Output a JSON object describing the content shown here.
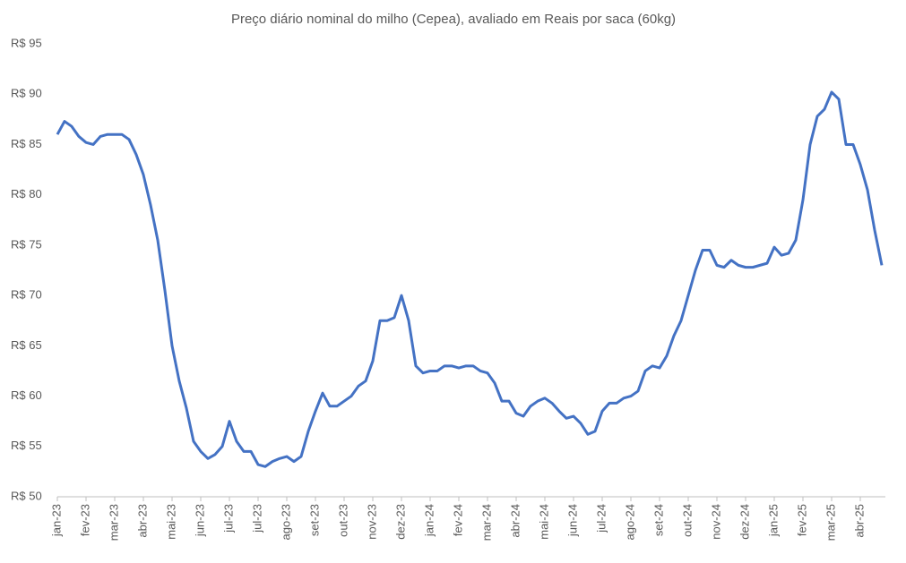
{
  "chart_data": {
    "type": "line",
    "title": "Preço diário nominal do milho (Cepea), avaliado em Reais por saca (60kg)",
    "categories": [
      "jan-23",
      null,
      null,
      null,
      "fev-23",
      null,
      null,
      null,
      "mar-23",
      null,
      null,
      null,
      "abr-23",
      null,
      null,
      null,
      "mai-23",
      null,
      null,
      null,
      "jun-23",
      null,
      null,
      null,
      "jul-23",
      null,
      null,
      null,
      "jul-23",
      null,
      null,
      null,
      "ago-23",
      null,
      null,
      null,
      "set-23",
      null,
      null,
      null,
      "out-23",
      null,
      null,
      null,
      "nov-23",
      null,
      null,
      null,
      "dez-23",
      null,
      null,
      null,
      "jan-24",
      null,
      null,
      null,
      "fev-24",
      null,
      null,
      null,
      "mar-24",
      null,
      null,
      null,
      "abr-24",
      null,
      null,
      null,
      "mai-24",
      null,
      null,
      null,
      "jun-24",
      null,
      null,
      null,
      "jul-24",
      null,
      null,
      null,
      "ago-24",
      null,
      null,
      null,
      "set-24",
      null,
      null,
      null,
      "out-24",
      null,
      null,
      null,
      "nov-24",
      null,
      null,
      null,
      "dez-24",
      null,
      null,
      null,
      "jan-25",
      null,
      null,
      null,
      "fev-25",
      null,
      null,
      null,
      "mar-25",
      null,
      null,
      null,
      "abr-25",
      null,
      null,
      null
    ],
    "values": [
      86,
      87.3,
      86.8,
      85.8,
      85.2,
      85,
      85.8,
      86,
      86,
      86,
      85.5,
      84,
      82,
      79,
      75.5,
      70.5,
      65,
      61.5,
      58.8,
      55.5,
      54.5,
      53.8,
      54.2,
      55,
      57.5,
      55.5,
      54.5,
      54.5,
      53.2,
      53,
      53.5,
      53.8,
      54,
      53.5,
      54,
      56.5,
      58.5,
      60.3,
      59,
      59,
      59.5,
      60,
      61,
      61.5,
      63.5,
      67.5,
      67.5,
      67.8,
      70,
      67.5,
      63,
      62.3,
      62.5,
      62.5,
      63,
      63,
      62.8,
      63,
      63,
      62.5,
      62.3,
      61.3,
      59.5,
      59.5,
      58.3,
      58,
      59,
      59.5,
      59.8,
      59.3,
      58.5,
      57.8,
      58,
      57.3,
      56.2,
      56.5,
      58.5,
      59.3,
      59.3,
      59.8,
      60,
      60.5,
      62.5,
      63,
      62.8,
      64,
      66,
      67.5,
      70,
      72.5,
      74.5,
      74.5,
      73,
      72.8,
      73.5,
      73,
      72.8,
      72.8,
      73,
      73.2,
      74.8,
      74,
      74.2,
      75.5,
      79.5,
      85,
      87.8,
      88.5,
      90.2,
      89.5,
      85,
      85,
      83,
      80.5,
      76.5,
      73
    ],
    "color": "#4472c4",
    "ylim": [
      50,
      95
    ],
    "yticks": [
      {
        "value": 50,
        "label": "R$ 50"
      },
      {
        "value": 55,
        "label": "R$ 55"
      },
      {
        "value": 60,
        "label": "R$ 60"
      },
      {
        "value": 65,
        "label": "R$ 65"
      },
      {
        "value": 70,
        "label": "R$ 70"
      },
      {
        "value": 75,
        "label": "R$ 75"
      },
      {
        "value": 80,
        "label": "R$ 80"
      },
      {
        "value": 85,
        "label": "R$ 85"
      },
      {
        "value": 90,
        "label": "R$ 90"
      },
      {
        "value": 95,
        "label": "R$ 95"
      }
    ],
    "grid": false
  }
}
